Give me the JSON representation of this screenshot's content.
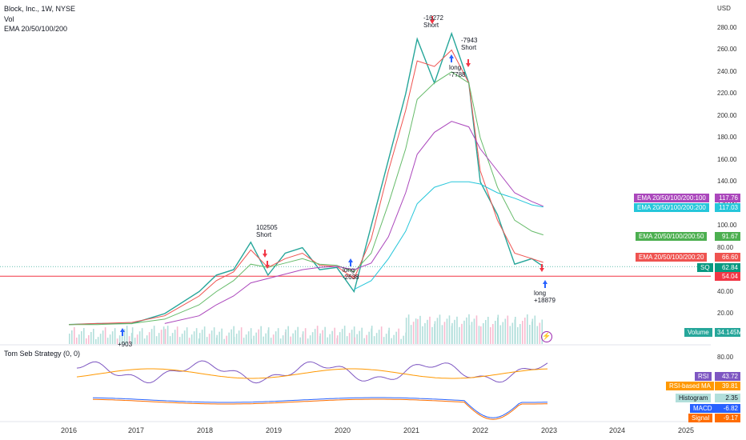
{
  "header": {
    "title": "Block, Inc., 1W, NYSE",
    "vol_label": "Vol",
    "ema_label": "EMA 20/50/100/200",
    "strategy_label": "Tom Seb Strategy (0, 0)",
    "currency": "USD"
  },
  "price_axis": {
    "ticks": [
      "280.00",
      "260.00",
      "240.00",
      "220.00",
      "200.00",
      "180.00",
      "160.00",
      "140.00",
      "120.00",
      "100.00",
      "80.00",
      "60.00",
      "40.00",
      "20.00"
    ]
  },
  "time_axis": {
    "ticks": [
      "2016",
      "2017",
      "2018",
      "2019",
      "2020",
      "2021",
      "2022",
      "2023",
      "2024",
      "2025"
    ]
  },
  "price_tags": [
    {
      "label": "EMA 20/50/100/200:100",
      "value": "117.76",
      "color": "#ab47bc"
    },
    {
      "label": "EMA 20/50/100/200:200",
      "value": "117.03",
      "color": "#26c6da"
    },
    {
      "label": "EMA 20/50/100/200:50",
      "value": "91.67",
      "color": "#4caf50"
    },
    {
      "label": "EMA 20/50/100/200:20",
      "value": "66.60",
      "color": "#ef5350"
    },
    {
      "label": "SQ",
      "value": "62.84",
      "color": "#089981"
    },
    {
      "label": "",
      "value": "54.04",
      "color": "#f23645"
    },
    {
      "label": "Volume",
      "value": "34.145M",
      "color": "#26a69a"
    }
  ],
  "oscillator": {
    "axis_tick": "80.00",
    "tags": [
      {
        "label": "RSI",
        "value": "43.72",
        "color": "#7e57c2"
      },
      {
        "label": "RSI-based MA",
        "value": "39.81",
        "color": "#ff9800"
      },
      {
        "label": "Histogram",
        "value": "2.35",
        "color": "#b2dfdb"
      },
      {
        "label": "MACD",
        "value": "-6.82",
        "color": "#2962ff"
      },
      {
        "label": "Signal",
        "value": "-9.17",
        "color": "#ff6d00"
      }
    ]
  },
  "annotations": [
    {
      "text": "102505\nShort"
    },
    {
      "text": "-16272\nShort"
    },
    {
      "text": "-7943\nShort"
    },
    {
      "text": "long\n-7788"
    },
    {
      "text": "long\n-2638"
    },
    {
      "text": "long\n+18879"
    },
    {
      "text": "+903"
    }
  ],
  "chart_data": {
    "type": "line",
    "title": "Block, Inc., 1W, NYSE",
    "ylabel": "USD",
    "ylim": [
      0,
      295
    ],
    "x": [
      "2016-01",
      "2016-06",
      "2016-12",
      "2017-06",
      "2017-12",
      "2018-03",
      "2018-06",
      "2018-09",
      "2018-12",
      "2019-03",
      "2019-06",
      "2019-09",
      "2019-12",
      "2020-03",
      "2020-06",
      "2020-09",
      "2020-12",
      "2021-02",
      "2021-05",
      "2021-08",
      "2021-11",
      "2022-01",
      "2022-04",
      "2022-07",
      "2022-10",
      "2022-12"
    ],
    "series": [
      {
        "name": "SQ",
        "values": [
          10,
          11,
          11,
          20,
          40,
          55,
          60,
          85,
          55,
          75,
          80,
          60,
          62,
          40,
          100,
          160,
          220,
          270,
          230,
          275,
          230,
          140,
          110,
          65,
          70,
          62.84
        ]
      },
      {
        "name": "EMA 20/50/100/200:20",
        "values": [
          10,
          11,
          12,
          18,
          36,
          50,
          58,
          78,
          62,
          70,
          75,
          64,
          63,
          52,
          88,
          150,
          205,
          250,
          245,
          260,
          230,
          150,
          105,
          75,
          70,
          66.6
        ]
      },
      {
        "name": "EMA 20/50/100/200:50",
        "values": [
          10,
          10,
          11,
          15,
          28,
          40,
          50,
          65,
          62,
          66,
          70,
          65,
          64,
          58,
          75,
          120,
          170,
          215,
          230,
          240,
          230,
          180,
          135,
          105,
          95,
          91.67
        ]
      },
      {
        "name": "EMA 20/50/100/200:100",
        "values": [
          null,
          null,
          null,
          11,
          18,
          28,
          36,
          48,
          52,
          56,
          60,
          62,
          63,
          60,
          66,
          90,
          130,
          165,
          185,
          195,
          190,
          170,
          150,
          130,
          122,
          117.76
        ]
      },
      {
        "name": "EMA 20/50/100/200:200",
        "values": [
          null,
          null,
          null,
          null,
          null,
          null,
          null,
          null,
          null,
          null,
          null,
          null,
          null,
          42,
          50,
          70,
          95,
          120,
          135,
          140,
          140,
          138,
          130,
          125,
          119,
          117.03
        ]
      }
    ]
  }
}
